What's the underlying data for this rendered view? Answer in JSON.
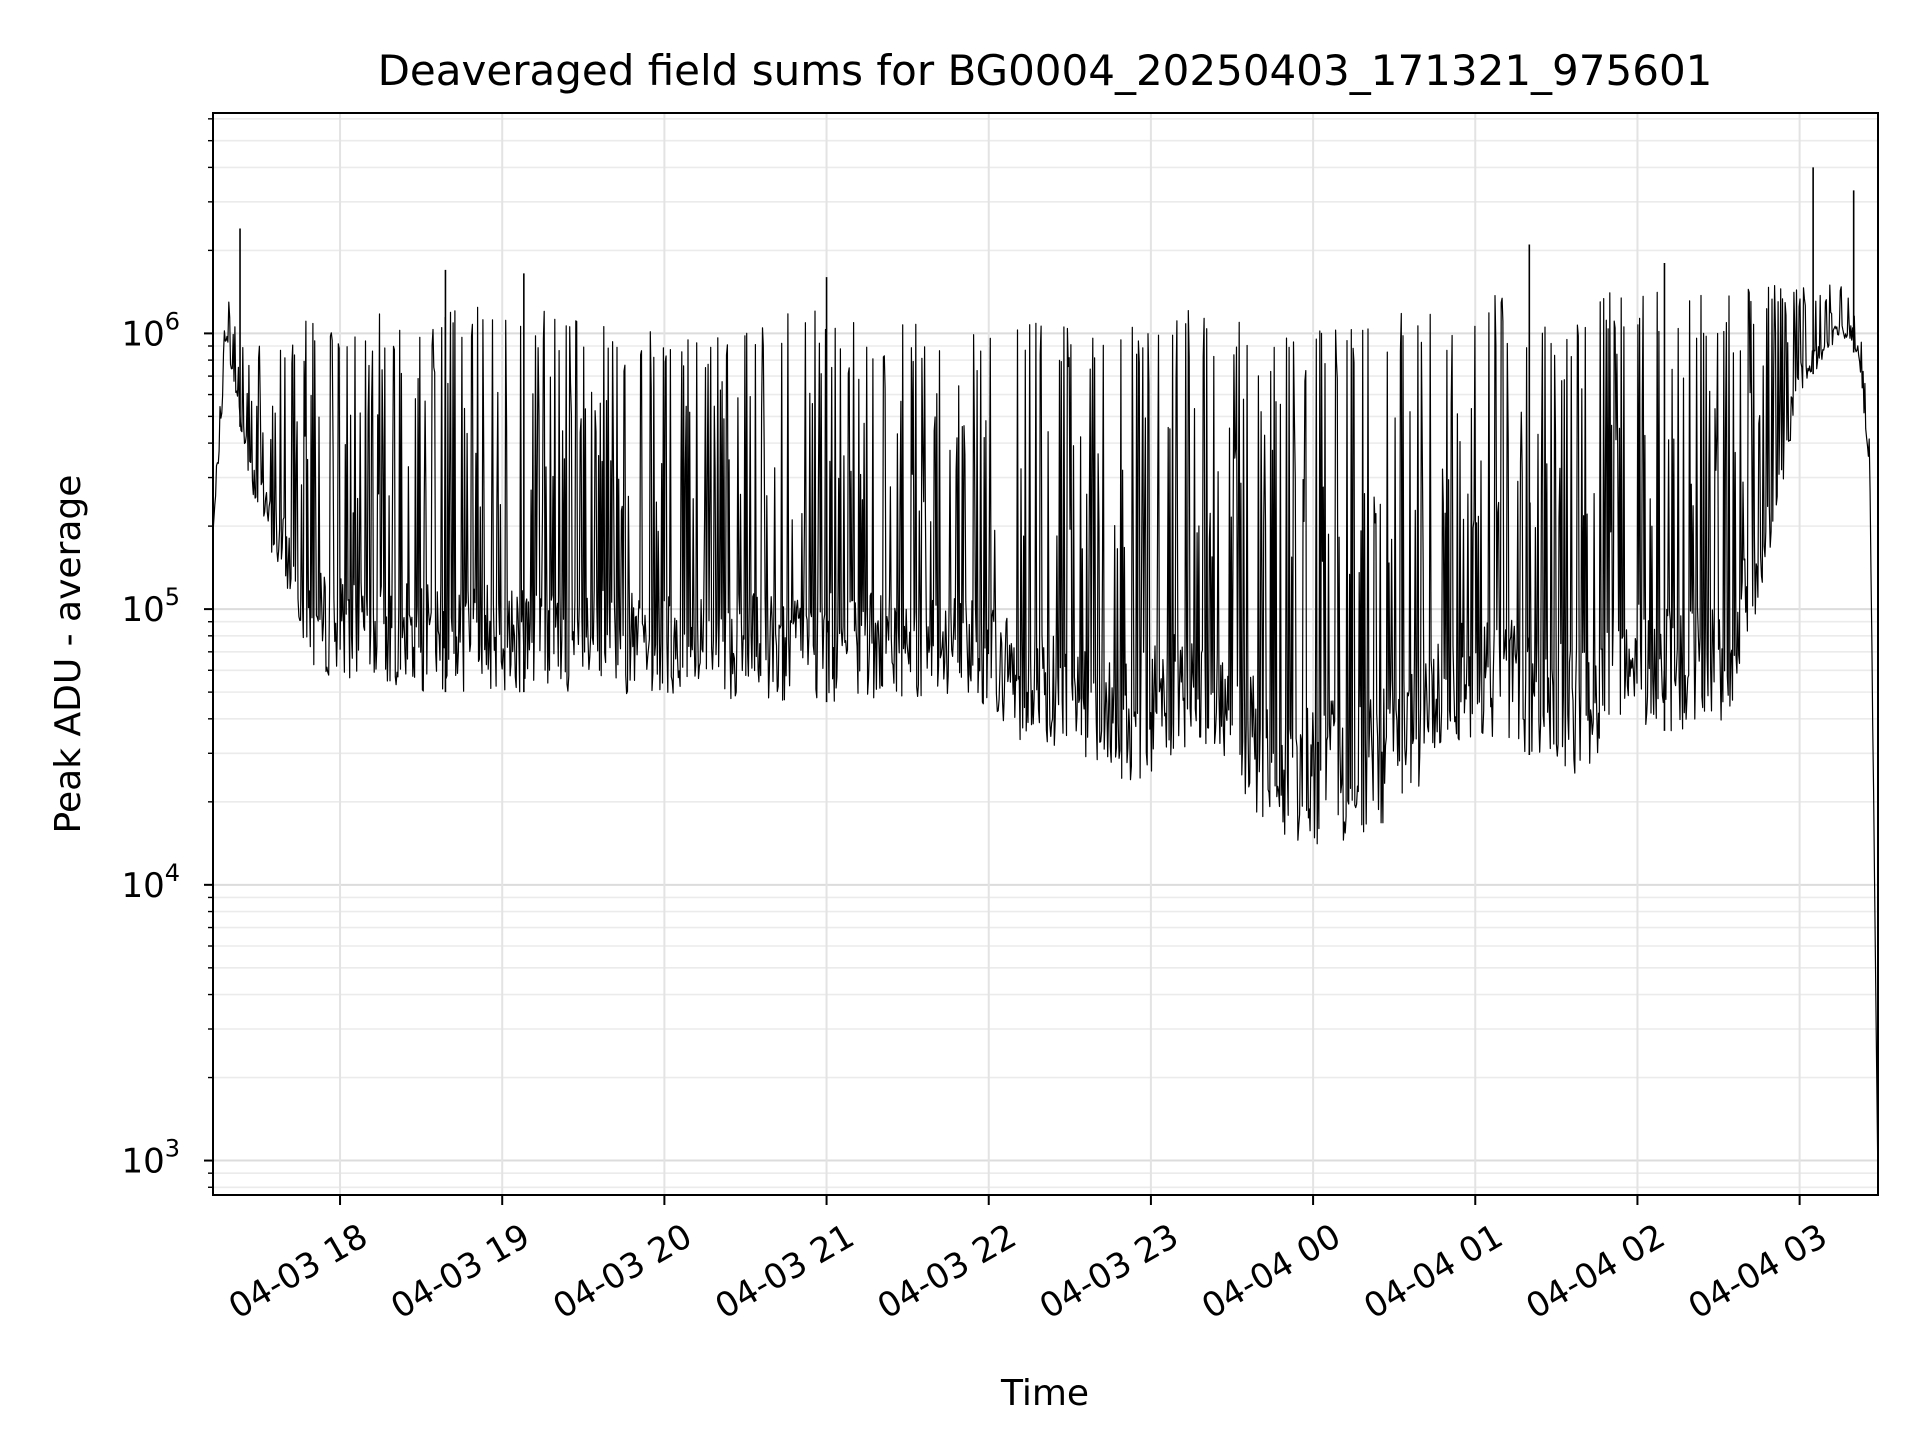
{
  "chart_data": {
    "type": "line",
    "title": "Deaveraged field sums for BG0004_20250403_171321_975601",
    "xlabel": "Time",
    "ylabel": "Peak ADU - average",
    "x_range": [
      "2025-04-03 17:13",
      "2025-04-04 03:29"
    ],
    "y_scale": "log",
    "ylim": [
      750,
      6300000
    ],
    "grid": true,
    "x_ticks": [
      {
        "value": "2025-04-03 18:00",
        "label": "04-03 18"
      },
      {
        "value": "2025-04-03 19:00",
        "label": "04-03 19"
      },
      {
        "value": "2025-04-03 20:00",
        "label": "04-03 20"
      },
      {
        "value": "2025-04-03 21:00",
        "label": "04-03 21"
      },
      {
        "value": "2025-04-03 22:00",
        "label": "04-03 22"
      },
      {
        "value": "2025-04-03 23:00",
        "label": "04-03 23"
      },
      {
        "value": "2025-04-04 00:00",
        "label": "04-04 00"
      },
      {
        "value": "2025-04-04 01:00",
        "label": "04-04 01"
      },
      {
        "value": "2025-04-04 02:00",
        "label": "04-04 02"
      },
      {
        "value": "2025-04-04 03:00",
        "label": "04-04 03"
      }
    ],
    "y_ticks": [
      {
        "value": 1000,
        "base": "10",
        "exp": "3"
      },
      {
        "value": 10000,
        "base": "10",
        "exp": "4"
      },
      {
        "value": 100000,
        "base": "10",
        "exp": "5"
      },
      {
        "value": 1000000,
        "base": "10",
        "exp": "6"
      }
    ],
    "series": [
      {
        "color": "#000000",
        "envelope": [
          {
            "x": "2025-04-03 17:13",
            "low": 180000,
            "high": 200000
          },
          {
            "x": "2025-04-03 17:18",
            "low": 900000,
            "high": 1400000
          },
          {
            "x": "2025-04-03 17:24",
            "low": 400000,
            "high": 1100000
          },
          {
            "x": "2025-04-03 17:30",
            "low": 200000,
            "high": 900000
          },
          {
            "x": "2025-04-03 17:40",
            "low": 120000,
            "high": 900000
          },
          {
            "x": "2025-04-03 17:50",
            "low": 60000,
            "high": 1200000
          },
          {
            "x": "2025-04-03 18:00",
            "low": 55000,
            "high": 1200000
          },
          {
            "x": "2025-04-03 18:30",
            "low": 50000,
            "high": 1300000
          },
          {
            "x": "2025-04-03 19:00",
            "low": 50000,
            "high": 1400000
          },
          {
            "x": "2025-04-03 19:30",
            "low": 50000,
            "high": 1100000
          },
          {
            "x": "2025-04-03 20:00",
            "low": 48000,
            "high": 1000000
          },
          {
            "x": "2025-04-03 20:30",
            "low": 47000,
            "high": 1100000
          },
          {
            "x": "2025-04-03 21:00",
            "low": 46000,
            "high": 1300000
          },
          {
            "x": "2025-04-03 21:30",
            "low": 47000,
            "high": 1100000
          },
          {
            "x": "2025-04-03 21:55",
            "low": 50000,
            "high": 1200000
          },
          {
            "x": "2025-04-03 22:05",
            "low": 35000,
            "high": 1300000
          },
          {
            "x": "2025-04-03 22:30",
            "low": 30000,
            "high": 1100000
          },
          {
            "x": "2025-04-03 22:50",
            "low": 22000,
            "high": 1100000
          },
          {
            "x": "2025-04-03 23:10",
            "low": 28000,
            "high": 1300000
          },
          {
            "x": "2025-04-03 23:30",
            "low": 25000,
            "high": 1100000
          },
          {
            "x": "2025-04-03 23:45",
            "low": 14000,
            "high": 1100000
          },
          {
            "x": "2025-04-04 00:00",
            "low": 14000,
            "high": 1100000
          },
          {
            "x": "2025-04-04 00:20",
            "low": 14000,
            "high": 1100000
          },
          {
            "x": "2025-04-04 00:35",
            "low": 20000,
            "high": 1200000
          },
          {
            "x": "2025-04-04 00:50",
            "low": 32000,
            "high": 1300000
          },
          {
            "x": "2025-04-04 01:10",
            "low": 35000,
            "high": 1400000
          },
          {
            "x": "2025-04-04 01:30",
            "low": 25000,
            "high": 1300000
          },
          {
            "x": "2025-04-04 01:40",
            "low": 25000,
            "high": 1200000
          },
          {
            "x": "2025-04-04 01:55",
            "low": 40000,
            "high": 1600000
          },
          {
            "x": "2025-04-04 02:15",
            "low": 35000,
            "high": 1500000
          },
          {
            "x": "2025-04-04 02:35",
            "low": 40000,
            "high": 1500000
          },
          {
            "x": "2025-04-04 02:50",
            "low": 180000,
            "high": 1500000
          },
          {
            "x": "2025-04-04 03:00",
            "low": 600000,
            "high": 1600000
          },
          {
            "x": "2025-04-04 03:15",
            "low": 1000000,
            "high": 1500000
          },
          {
            "x": "2025-04-04 03:22",
            "low": 800000,
            "high": 1200000
          },
          {
            "x": "2025-04-04 03:26",
            "low": 300000,
            "high": 400000
          },
          {
            "x": "2025-04-04 03:29",
            "low": 800,
            "high": 800
          }
        ],
        "spikes": [
          {
            "x": "2025-04-03 17:23",
            "y": 2400000
          },
          {
            "x": "2025-04-03 18:39",
            "y": 1700000
          },
          {
            "x": "2025-04-03 19:08",
            "y": 1650000
          },
          {
            "x": "2025-04-03 21:00",
            "y": 1600000
          },
          {
            "x": "2025-04-04 01:20",
            "y": 2100000
          },
          {
            "x": "2025-04-04 02:10",
            "y": 1800000
          },
          {
            "x": "2025-04-04 03:05",
            "y": 4000000
          },
          {
            "x": "2025-04-04 03:20",
            "y": 3300000
          }
        ]
      }
    ]
  }
}
